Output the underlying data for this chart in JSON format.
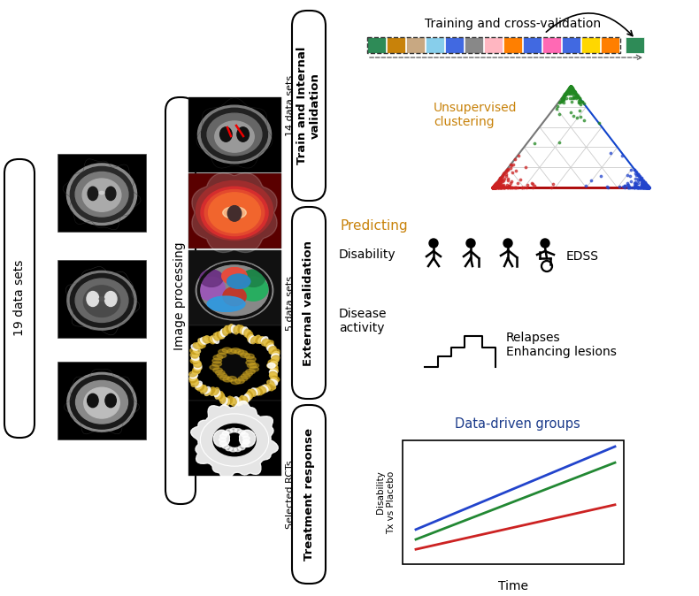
{
  "bg_color": "#ffffff",
  "orange_text": "#c8820a",
  "blue_text": "#1a3a8a",
  "section1_label": "Train and Internal\nvalidation",
  "section2_label": "External validation",
  "section3_label": "Treatment response",
  "left_label": "19 data sets",
  "mid_label": "Image processing",
  "datasets14_label": "14 data sets",
  "datasets5_label": "5 data sets",
  "selectedrcts_label": "Selected RCTs",
  "cv_title": "Training and cross-validation",
  "clustering_label": "Unsupervised\nclustering",
  "predicting_label": "Predicting",
  "disability_label": "Disability",
  "edss_label": "EDSS",
  "disease_activity_label": "Disease\nactivity",
  "relapses_label": "Relapses\nEnhancing lesions",
  "datadriven_label": "Data-driven groups",
  "time_label": "Time",
  "disability_yaxis": "Disability\nTx vs Placebo",
  "cv_colors": [
    "#2e8b57",
    "#c8820a",
    "#c8a882",
    "#87ceeb",
    "#4169e1",
    "#888888",
    "#ffb6c1",
    "#ff7f00",
    "#4169e1",
    "#ff69b4",
    "#4169e1",
    "#ffd700",
    "#ff7f00"
  ],
  "cv_validation_color": "#2e8b57",
  "line_blue": "#2244cc",
  "line_green": "#228833",
  "line_red": "#cc2222"
}
